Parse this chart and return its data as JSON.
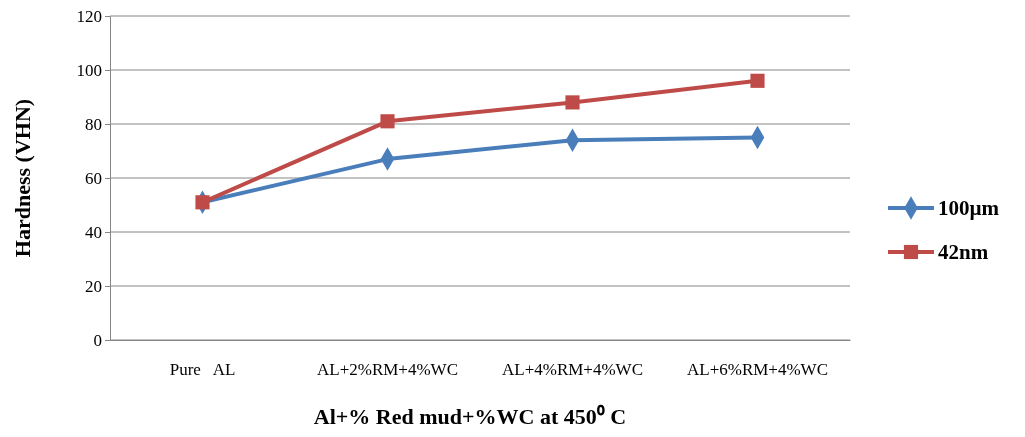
{
  "chart_data": {
    "type": "line",
    "xlabel": "Al+% Red mud+%WC at 450⁰ C",
    "ylabel": "Hardness (VHN)",
    "categories": [
      "Pure   AL",
      "AL+2%RM+4%WC",
      "AL+4%RM+4%WC",
      "AL+6%RM+4%WC"
    ],
    "ylim": [
      0,
      120
    ],
    "yticks": [
      0,
      20,
      40,
      60,
      80,
      100,
      120
    ],
    "grid": "y",
    "legend": "right",
    "series": [
      {
        "name": "100µm",
        "color": "#4a7ebb",
        "marker": "diamond",
        "values": [
          51,
          67,
          74,
          75
        ]
      },
      {
        "name": "42nm",
        "color": "#be4b48",
        "marker": "square",
        "values": [
          51,
          81,
          88,
          96
        ]
      }
    ]
  }
}
